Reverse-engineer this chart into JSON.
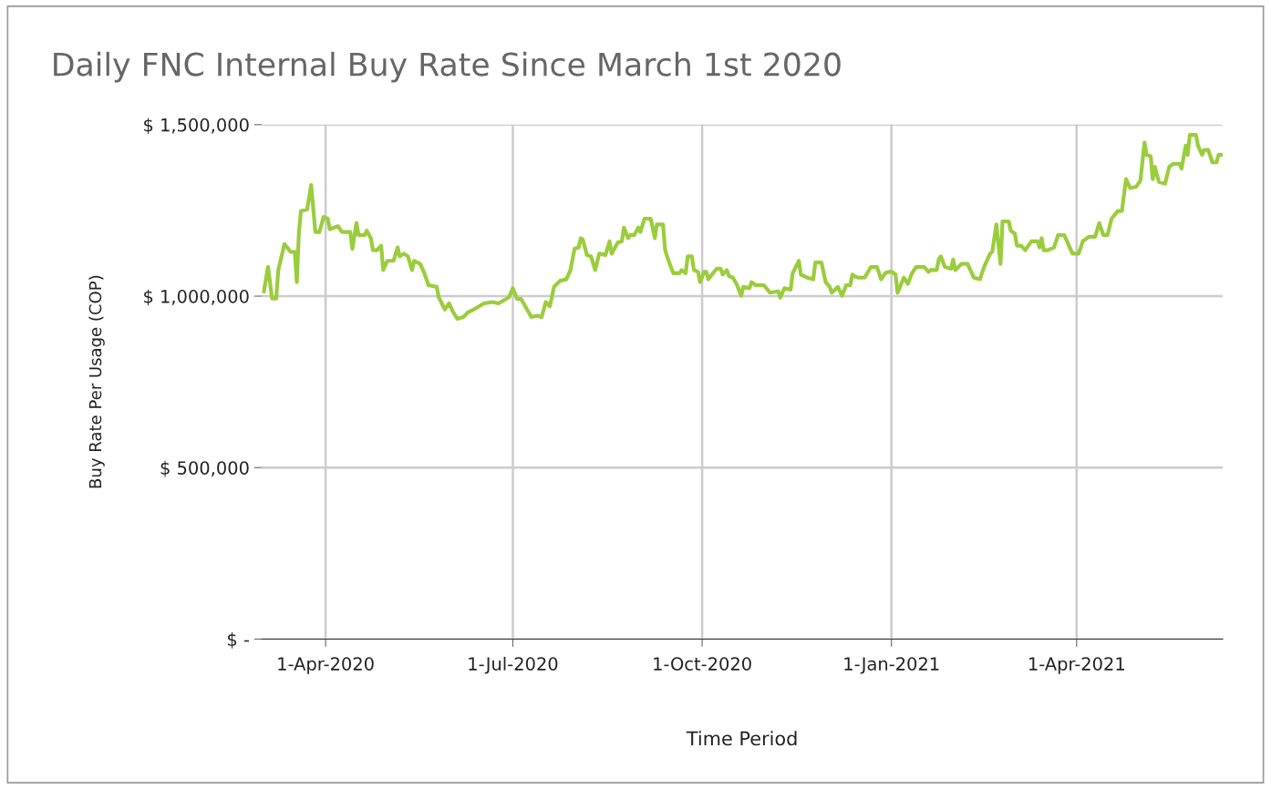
{
  "chart_data": {
    "type": "line",
    "title": "Daily FNC Internal Buy Rate Since March 1st 2020",
    "xlabel": "Time Period",
    "ylabel": "Buy Rate Per Usage (COP)",
    "xlim": [
      "2020-03-01",
      "2021-06-11"
    ],
    "xticks": [
      {
        "value": "2020-04-01",
        "label": "1-Apr-2020"
      },
      {
        "value": "2020-07-01",
        "label": "1-Jul-2020"
      },
      {
        "value": "2020-10-01",
        "label": "1-Oct-2020"
      },
      {
        "value": "2021-01-01",
        "label": "1-Jan-2021"
      },
      {
        "value": "2021-04-01",
        "label": "1-Apr-2021"
      }
    ],
    "ylim": [
      0,
      1500000
    ],
    "yticks": [
      {
        "value": 0,
        "label": "$ -"
      },
      {
        "value": 500000,
        "label": "$ 500,000"
      },
      {
        "value": 1000000,
        "label": "$ 1,000,000"
      },
      {
        "value": 1500000,
        "label": "$ 1,500,000"
      }
    ],
    "grid": true,
    "marker": "none",
    "line_style": "solid",
    "x": [
      "2020-03-02",
      "2020-03-04",
      "2020-03-06",
      "2020-03-08",
      "2020-03-09",
      "2020-03-12",
      "2020-03-15",
      "2020-03-17",
      "2020-03-18",
      "2020-03-19",
      "2020-03-20",
      "2020-03-23",
      "2020-03-25",
      "2020-03-27",
      "2020-03-29",
      "2020-03-31",
      "2020-04-02",
      "2020-04-03",
      "2020-04-07",
      "2020-04-09",
      "2020-04-13",
      "2020-04-14",
      "2020-04-16",
      "2020-04-17",
      "2020-04-20",
      "2020-04-21",
      "2020-04-23",
      "2020-04-24",
      "2020-04-26",
      "2020-04-28",
      "2020-04-29",
      "2020-05-01",
      "2020-05-04",
      "2020-05-06",
      "2020-05-07",
      "2020-05-09",
      "2020-05-11",
      "2020-05-13",
      "2020-05-14",
      "2020-05-17",
      "2020-05-19",
      "2020-05-21",
      "2020-05-25",
      "2020-05-26",
      "2020-05-29",
      "2020-05-31",
      "2020-06-02",
      "2020-06-04",
      "2020-06-07",
      "2020-06-09",
      "2020-06-12",
      "2020-06-17",
      "2020-06-21",
      "2020-06-24",
      "2020-06-29",
      "2020-07-01",
      "2020-07-03",
      "2020-07-05",
      "2020-07-10",
      "2020-07-13",
      "2020-07-15",
      "2020-07-17",
      "2020-07-19",
      "2020-07-21",
      "2020-07-24",
      "2020-07-27",
      "2020-07-29",
      "2020-07-31",
      "2020-08-02",
      "2020-08-03",
      "2020-08-04",
      "2020-08-06",
      "2020-08-08",
      "2020-08-10",
      "2020-08-12",
      "2020-08-15",
      "2020-08-17",
      "2020-08-18",
      "2020-08-21",
      "2020-08-23",
      "2020-08-24",
      "2020-08-26",
      "2020-08-27",
      "2020-08-29",
      "2020-08-31",
      "2020-09-01",
      "2020-09-03",
      "2020-09-06",
      "2020-09-08",
      "2020-09-09",
      "2020-09-12",
      "2020-09-13",
      "2020-09-15",
      "2020-09-17",
      "2020-09-20",
      "2020-09-21",
      "2020-09-23",
      "2020-09-24",
      "2020-09-26",
      "2020-09-27",
      "2020-09-29",
      "2020-09-30",
      "2020-10-02",
      "2020-10-03",
      "2020-10-04",
      "2020-10-08",
      "2020-10-10",
      "2020-10-11",
      "2020-10-13",
      "2020-10-14",
      "2020-10-16",
      "2020-10-18",
      "2020-10-20",
      "2020-10-21",
      "2020-10-24",
      "2020-10-25",
      "2020-10-27",
      "2020-10-31",
      "2020-11-03",
      "2020-11-07",
      "2020-11-08",
      "2020-11-10",
      "2020-11-13",
      "2020-11-14",
      "2020-11-17",
      "2020-11-18",
      "2020-11-21",
      "2020-11-24",
      "2020-11-25",
      "2020-11-28",
      "2020-11-30",
      "2020-12-02",
      "2020-12-03",
      "2020-12-06",
      "2020-12-08",
      "2020-12-10",
      "2020-12-12",
      "2020-12-13",
      "2020-12-14",
      "2020-12-16",
      "2020-12-19",
      "2020-12-22",
      "2020-12-25",
      "2020-12-27",
      "2020-12-29",
      "2020-12-31",
      "2021-01-01",
      "2021-01-03",
      "2021-01-04",
      "2021-01-07",
      "2021-01-09",
      "2021-01-11",
      "2021-01-13",
      "2021-01-17",
      "2021-01-19",
      "2021-01-20",
      "2021-01-23",
      "2021-01-24",
      "2021-01-25",
      "2021-01-27",
      "2021-01-30",
      "2021-01-31",
      "2021-02-01",
      "2021-02-04",
      "2021-02-07",
      "2021-02-10",
      "2021-02-13",
      "2021-02-15",
      "2021-02-18",
      "2021-02-19",
      "2021-02-21",
      "2021-02-23",
      "2021-02-24",
      "2021-02-27",
      "2021-02-28",
      "2021-03-02",
      "2021-03-03",
      "2021-03-05",
      "2021-03-07",
      "2021-03-10",
      "2021-03-13",
      "2021-03-14",
      "2021-03-15",
      "2021-03-16",
      "2021-03-18",
      "2021-03-21",
      "2021-03-23",
      "2021-03-26",
      "2021-03-30",
      "2021-04-02",
      "2021-04-04",
      "2021-04-07",
      "2021-04-10",
      "2021-04-12",
      "2021-04-14",
      "2021-04-16",
      "2021-04-18",
      "2021-04-21",
      "2021-04-23",
      "2021-04-25",
      "2021-04-27",
      "2021-04-30",
      "2021-05-02",
      "2021-05-04",
      "2021-05-05",
      "2021-05-07",
      "2021-05-08",
      "2021-05-09",
      "2021-05-11",
      "2021-05-14",
      "2021-05-16",
      "2021-05-18",
      "2021-05-21",
      "2021-05-22",
      "2021-05-24",
      "2021-05-25",
      "2021-05-26",
      "2021-05-29",
      "2021-05-30",
      "2021-06-01",
      "2021-06-02",
      "2021-06-04",
      "2021-06-06",
      "2021-06-08",
      "2021-06-09",
      "2021-06-11"
    ],
    "series": [
      {
        "color": "#9acd3c",
        "values": [
          1014000,
          1085000,
          993000,
          993000,
          1076000,
          1152000,
          1129000,
          1129000,
          1041000,
          1182000,
          1248000,
          1253000,
          1324000,
          1187000,
          1187000,
          1231000,
          1226000,
          1195000,
          1204000,
          1187000,
          1187000,
          1138000,
          1213000,
          1178000,
          1178000,
          1191000,
          1169000,
          1134000,
          1134000,
          1147000,
          1076000,
          1103000,
          1103000,
          1142000,
          1116000,
          1124000,
          1116000,
          1076000,
          1103000,
          1094000,
          1067000,
          1032000,
          1027000,
          996000,
          961000,
          979000,
          953000,
          934000,
          939000,
          952000,
          961000,
          979000,
          983000,
          979000,
          996000,
          1023000,
          992000,
          992000,
          939000,
          943000,
          939000,
          983000,
          970000,
          1027000,
          1045000,
          1049000,
          1076000,
          1138000,
          1142000,
          1169000,
          1165000,
          1120000,
          1116000,
          1076000,
          1124000,
          1120000,
          1160000,
          1124000,
          1156000,
          1160000,
          1200000,
          1169000,
          1178000,
          1178000,
          1200000,
          1187000,
          1226000,
          1226000,
          1169000,
          1209000,
          1209000,
          1134000,
          1098000,
          1067000,
          1067000,
          1076000,
          1067000,
          1116000,
          1116000,
          1076000,
          1071000,
          1041000,
          1071000,
          1071000,
          1049000,
          1080000,
          1080000,
          1063000,
          1076000,
          1058000,
          1054000,
          1032000,
          1001000,
          1027000,
          1023000,
          1041000,
          1032000,
          1032000,
          1010000,
          1014000,
          996000,
          1023000,
          1019000,
          1067000,
          1103000,
          1063000,
          1054000,
          1049000,
          1098000,
          1098000,
          1041000,
          1027000,
          1010000,
          1027000,
          1001000,
          1032000,
          1032000,
          1063000,
          1058000,
          1054000,
          1054000,
          1085000,
          1085000,
          1049000,
          1067000,
          1071000,
          1071000,
          1063000,
          1010000,
          1054000,
          1036000,
          1067000,
          1085000,
          1085000,
          1071000,
          1076000,
          1076000,
          1107000,
          1116000,
          1085000,
          1080000,
          1107000,
          1076000,
          1094000,
          1094000,
          1054000,
          1049000,
          1085000,
          1124000,
          1129000,
          1209000,
          1094000,
          1218000,
          1218000,
          1191000,
          1182000,
          1147000,
          1147000,
          1134000,
          1160000,
          1160000,
          1142000,
          1169000,
          1134000,
          1134000,
          1142000,
          1178000,
          1178000,
          1124000,
          1124000,
          1160000,
          1173000,
          1173000,
          1213000,
          1178000,
          1178000,
          1226000,
          1248000,
          1248000,
          1341000,
          1315000,
          1319000,
          1337000,
          1448000,
          1412000,
          1408000,
          1341000,
          1377000,
          1333000,
          1328000,
          1377000,
          1386000,
          1386000,
          1372000,
          1439000,
          1412000,
          1470000,
          1470000,
          1439000,
          1412000,
          1426000,
          1426000,
          1390000,
          1390000,
          1412000,
          1412000
        ]
      }
    ]
  }
}
